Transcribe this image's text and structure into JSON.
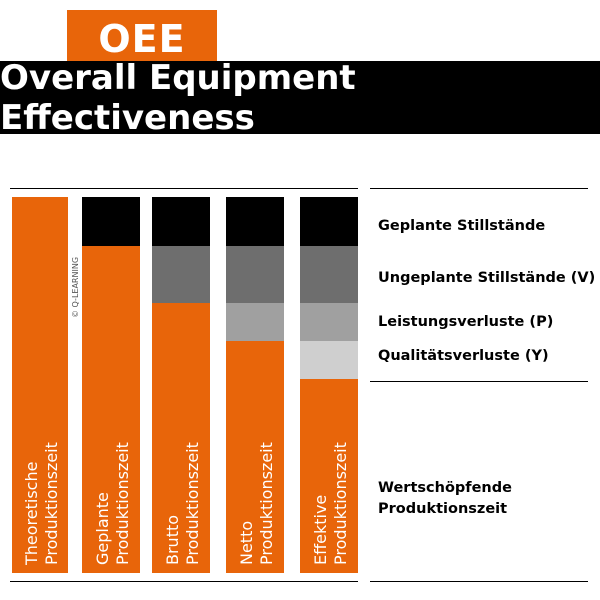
{
  "badge": "OEE",
  "title": "Overall Equipment Effectiveness",
  "copyright": "© Q-LEARNING",
  "colors": {
    "accent": "#e8650a",
    "planned_downtime": "#000000",
    "unplanned_downtime": "#6e6e6e",
    "performance_loss": "#a0a0a0",
    "quality_loss": "#cfcfcf",
    "title_bar": "#000000"
  },
  "columns": [
    {
      "label": "Theoretische\nProduktionszeit"
    },
    {
      "label": "Geplante\nProduktionszeit"
    },
    {
      "label": "Brutto\nProduktionszeit"
    },
    {
      "label": "Netto\nProduktionszeit"
    },
    {
      "label": "Effektive\nProduktionszeit"
    }
  ],
  "legend": [
    {
      "label": "Geplante Stillstände"
    },
    {
      "label": "Ungeplante Stillstände (V)"
    },
    {
      "label": "Leistungsverluste (P)"
    },
    {
      "label": "Qualitätsverluste (Y)"
    },
    {
      "label": "Wertschöpfende\nProduktionszeit"
    }
  ]
}
